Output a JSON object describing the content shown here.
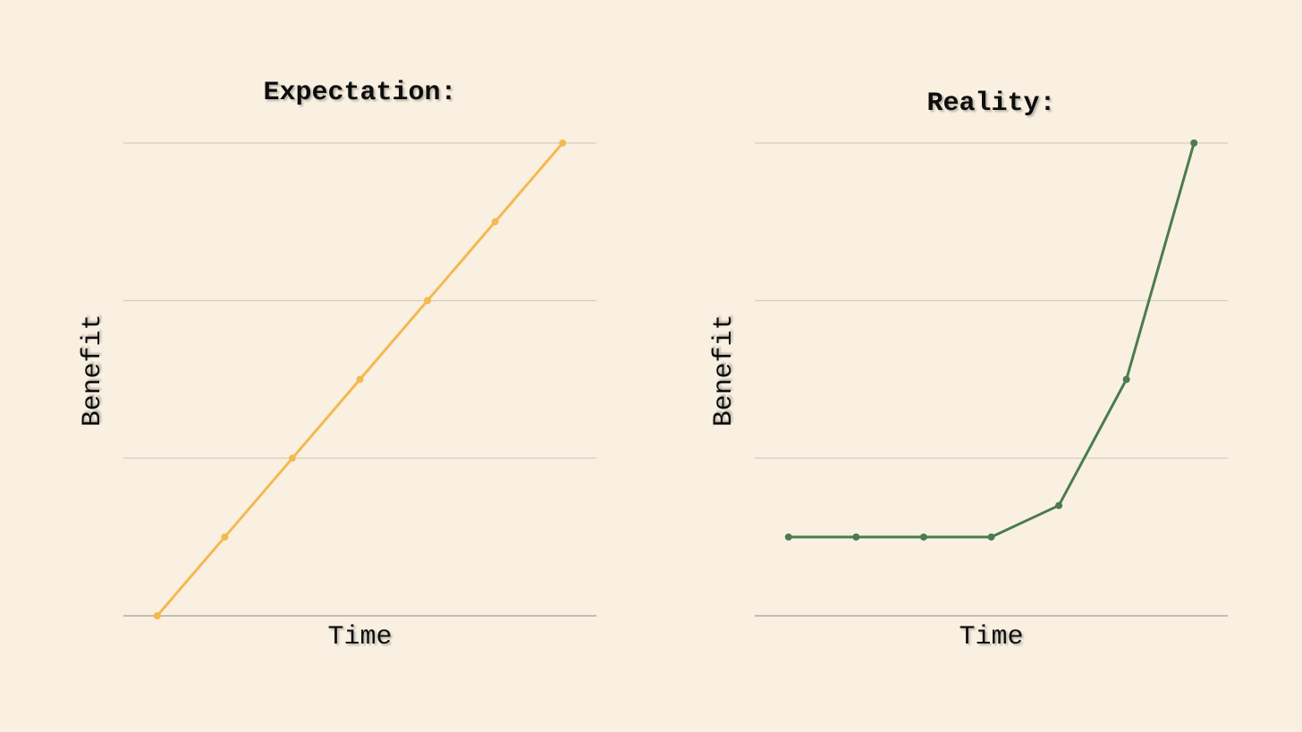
{
  "chart_data": [
    {
      "type": "line",
      "title": "Expectation:",
      "x_label": "Time",
      "y_label": "Benefit",
      "x": [
        0,
        1,
        2,
        3,
        4,
        5,
        6
      ],
      "xlim": [
        -0.5,
        6.5
      ],
      "ylim": [
        0,
        3
      ],
      "yticks": [
        0,
        1,
        2,
        3
      ],
      "grid": true,
      "series": [
        {
          "color": "#f4b950",
          "values": [
            0,
            0.5,
            1,
            1.5,
            2,
            2.5,
            3
          ]
        }
      ]
    },
    {
      "type": "line",
      "title": "Reality:",
      "x_label": "Time",
      "y_label": "Benefit",
      "x": [
        0,
        1,
        2,
        3,
        4,
        5,
        6
      ],
      "xlim": [
        -0.5,
        6.5
      ],
      "ylim": [
        0,
        3
      ],
      "yticks": [
        0,
        1,
        2,
        3
      ],
      "grid": true,
      "series": [
        {
          "color": "#4a7c4e",
          "values": [
            0.5,
            0.5,
            0.5,
            0.5,
            0.7,
            1.5,
            3
          ]
        }
      ]
    }
  ]
}
